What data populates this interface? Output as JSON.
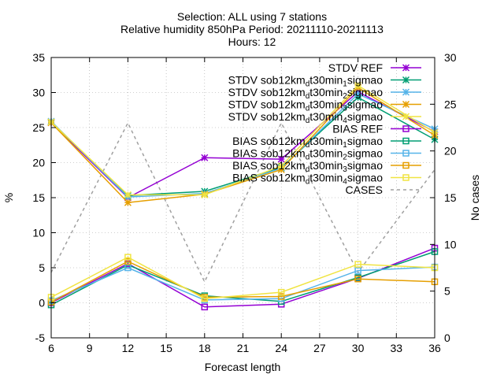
{
  "chart_data": {
    "type": "line",
    "title_lines": [
      "Selection: ALL using     7 stations",
      "Relative humidity 850hPa   Period: 20211110-20211113",
      "Hours: 12"
    ],
    "xlabel": "Forecast length",
    "ylabel": "%",
    "y2label": "No cases",
    "x": [
      6,
      12,
      18,
      24,
      30,
      36
    ],
    "xlim": [
      6,
      36
    ],
    "ylim": [
      -5,
      35
    ],
    "y2lim": [
      0,
      30
    ],
    "xticks": [
      "6",
      "9",
      "12",
      "15",
      "18",
      "21",
      "24",
      "27",
      "30",
      "33",
      "36"
    ],
    "yticks": [
      "-5",
      "0",
      "5",
      "10",
      "15",
      "20",
      "25",
      "30",
      "35"
    ],
    "y2ticks": [
      "0",
      "5",
      "10",
      "15",
      "20",
      "25",
      "30"
    ],
    "grid": true,
    "legend_position": "top-right",
    "series": [
      {
        "name": "STDV REF",
        "label_main": "STDV REF",
        "label_sub": "",
        "label_tail": "",
        "color": "#9400d3",
        "marker": "star",
        "axis": "y",
        "values": [
          25.7,
          15.0,
          20.7,
          20.5,
          30.1,
          24.4
        ]
      },
      {
        "name": "STDV sob12km_dt30min_1sigmao",
        "label_main": "STDV sob12km",
        "label_sub": "d",
        "label_tail": "t30min",
        "label_sub2": "1",
        "label_end": "sigmao",
        "color": "#009e73",
        "marker": "star",
        "axis": "y",
        "values": [
          25.8,
          15.3,
          15.9,
          19.3,
          29.3,
          23.3
        ]
      },
      {
        "name": "STDV sob12km_dt30min_2sigmao",
        "label_main": "STDV sob12km",
        "label_sub": "d",
        "label_tail": "t30min",
        "label_sub2": "2",
        "label_end": "sigmao",
        "color": "#56b4e9",
        "marker": "star",
        "axis": "y",
        "values": [
          25.9,
          15.1,
          15.6,
          19.2,
          29.8,
          24.8
        ]
      },
      {
        "name": "STDV sob12km_dt30min_3sigmao",
        "label_main": "STDV sob12km",
        "label_sub": "d",
        "label_tail": "t30min",
        "label_sub2": "3",
        "label_end": "sigmao",
        "color": "#e69f00",
        "marker": "star",
        "axis": "y",
        "values": [
          25.7,
          14.3,
          15.5,
          19.0,
          30.7,
          23.9
        ]
      },
      {
        "name": "STDV sob12km_dt30min_4sigmao",
        "label_main": "STDV sob12km",
        "label_sub": "d",
        "label_tail": "t30min",
        "label_sub2": "4",
        "label_end": "sigmao",
        "color": "#f0e442",
        "marker": "star",
        "axis": "y",
        "values": [
          25.8,
          15.4,
          15.4,
          19.5,
          31.0,
          24.3
        ]
      },
      {
        "name": "BIAS REF",
        "label_main": "BIAS REF",
        "label_sub": "",
        "label_tail": "",
        "color": "#9400d3",
        "marker": "square",
        "axis": "y",
        "values": [
          0.0,
          5.6,
          -0.6,
          -0.2,
          3.5,
          7.8
        ]
      },
      {
        "name": "BIAS sob12km_dt30min_1sigmao",
        "label_main": "BIAS sob12km",
        "label_sub": "d",
        "label_tail": "t30min",
        "label_sub2": "1",
        "label_end": "sigmao",
        "color": "#009e73",
        "marker": "square",
        "axis": "y",
        "values": [
          -0.3,
          5.4,
          1.0,
          0.2,
          3.6,
          7.3
        ]
      },
      {
        "name": "BIAS sob12km_dt30min_2sigmao",
        "label_main": "BIAS sob12km",
        "label_sub": "d",
        "label_tail": "t30min",
        "label_sub2": "2",
        "label_end": "sigmao",
        "color": "#56b4e9",
        "marker": "square",
        "axis": "y",
        "values": [
          0.3,
          5.0,
          0.4,
          0.6,
          4.6,
          5.1
        ]
      },
      {
        "name": "BIAS sob12km_dt30min_3sigmao",
        "label_main": "BIAS sob12km",
        "label_sub": "d",
        "label_tail": "t30min",
        "label_sub2": "3",
        "label_end": "sigmao",
        "color": "#e69f00",
        "marker": "square",
        "axis": "y",
        "values": [
          0.1,
          5.9,
          0.8,
          0.9,
          3.4,
          3.0
        ]
      },
      {
        "name": "BIAS sob12km_dt30min_4sigmao",
        "label_main": "BIAS sob12km",
        "label_sub": "d",
        "label_tail": "t30min",
        "label_sub2": "4",
        "label_end": "sigmao",
        "color": "#f0e442",
        "marker": "square",
        "axis": "y",
        "values": [
          0.8,
          6.5,
          0.6,
          1.5,
          5.5,
          5.0
        ]
      },
      {
        "name": "CASES",
        "label_main": "CASES",
        "label_sub": "",
        "label_tail": "",
        "color": "#a0a0a0",
        "marker": "none",
        "axis": "y2",
        "dashed": true,
        "values": [
          7,
          23,
          6,
          23,
          7,
          18
        ]
      }
    ]
  }
}
